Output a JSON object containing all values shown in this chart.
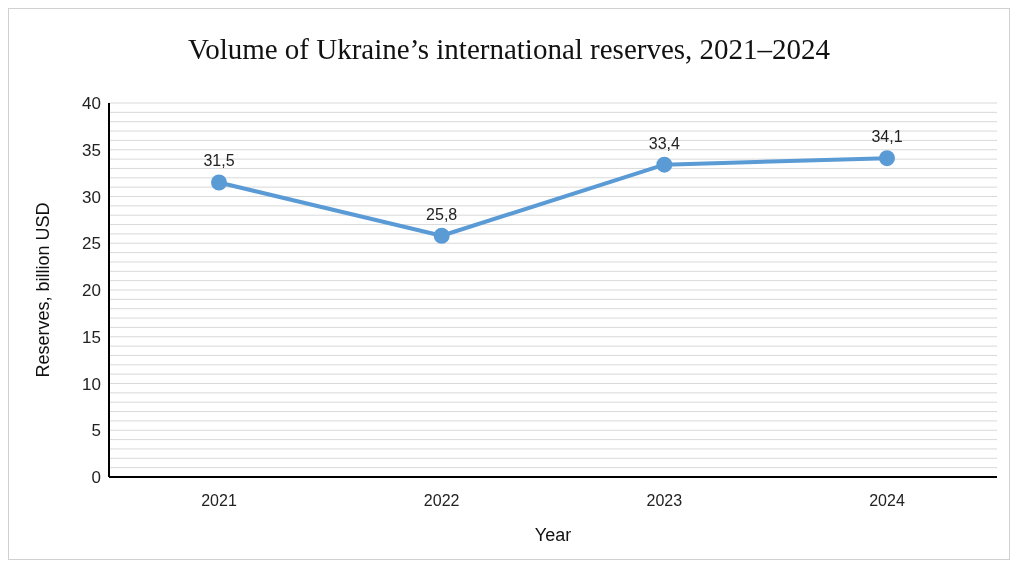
{
  "chart_data": {
    "type": "line",
    "title": "Volume of Ukraine’s international reserves, 2021–2024",
    "xlabel": "Year",
    "ylabel": "Reserves, billion USD",
    "categories": [
      "2021",
      "2022",
      "2023",
      "2024"
    ],
    "series": [
      {
        "color": "#5b9bd5",
        "values": [
          31.5,
          25.8,
          33.4,
          34.1
        ],
        "value_labels": [
          "31,5",
          "25,8",
          "33,4",
          "34,1"
        ]
      }
    ],
    "ylim": [
      0,
      40
    ],
    "yticks": [
      0,
      {
        "value": 1,
        "label": null
      },
      {
        "value": 2,
        "label": null
      },
      {
        "value": 3,
        "label": null
      },
      {
        "value": 4,
        "label": null
      },
      5,
      {
        "value": 6,
        "label": null
      },
      {
        "value": 7,
        "label": null
      },
      {
        "value": 8,
        "label": null
      },
      {
        "value": 9,
        "label": null
      },
      10,
      {
        "value": 11,
        "label": null
      },
      {
        "value": 12,
        "label": null
      },
      {
        "value": 13,
        "label": null
      },
      {
        "value": 14,
        "label": null
      },
      15,
      {
        "value": 16,
        "label": null
      },
      {
        "value": 17,
        "label": null
      },
      {
        "value": 18,
        "label": null
      },
      {
        "value": 19,
        "label": null
      },
      20,
      {
        "value": 21,
        "label": null
      },
      {
        "value": 22,
        "label": null
      },
      {
        "value": 23,
        "label": null
      },
      {
        "value": 24,
        "label": null
      },
      25,
      {
        "value": 26,
        "label": null
      },
      {
        "value": 27,
        "label": null
      },
      {
        "value": 28,
        "label": null
      },
      {
        "value": 29,
        "label": null
      },
      30,
      {
        "value": 31,
        "label": null
      },
      {
        "value": 32,
        "label": null
      },
      {
        "value": 33,
        "label": null
      },
      {
        "value": 34,
        "label": null
      },
      35,
      {
        "value": 36,
        "label": null
      },
      {
        "value": 37,
        "label": null
      },
      {
        "value": 38,
        "label": null
      },
      {
        "value": 39,
        "label": null
      },
      40
    ],
    "grid": "y",
    "marker": "circle",
    "line_style": "solid"
  }
}
